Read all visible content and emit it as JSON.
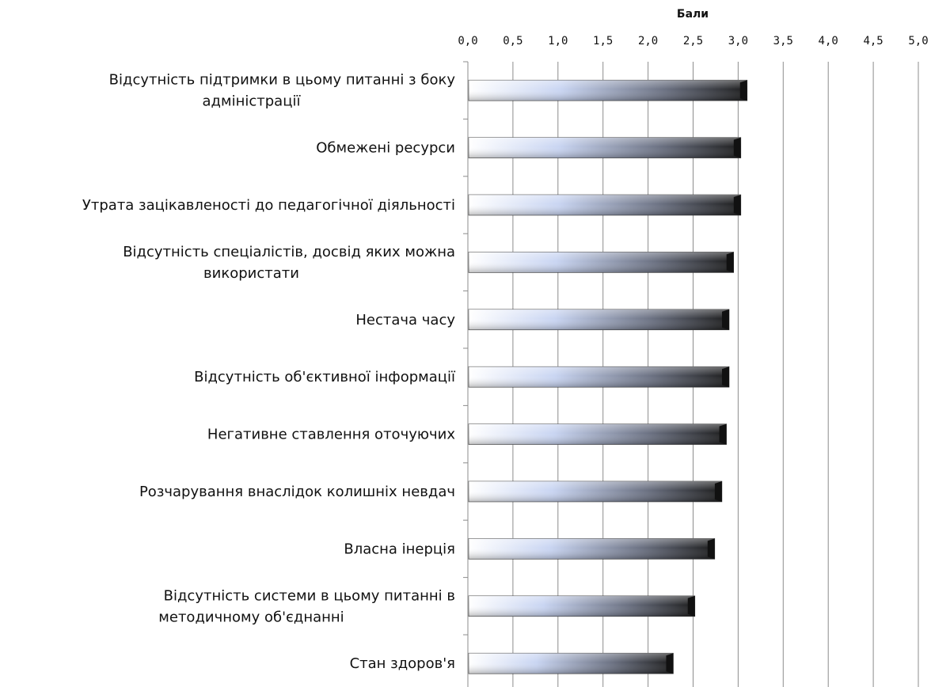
{
  "chart_data": {
    "type": "bar",
    "orientation": "horizontal",
    "xlabel": "Бали",
    "ylabel": "",
    "xlim": [
      0,
      5
    ],
    "ticks": [
      "0,0",
      "0,5",
      "1,0",
      "1,5",
      "2,0",
      "2,5",
      "3,0",
      "3,5",
      "4,0",
      "4,5",
      "5,0"
    ],
    "x_axis_position": "top",
    "grid": true,
    "legend": "none",
    "categories": [
      [
        "Відсутність підтримки в цьому питанні з боку",
        "адміністрації"
      ],
      [
        "Обмежені ресурси"
      ],
      [
        "Утрата зацікавленості до педагогічної діяльності"
      ],
      [
        "Відсутність спеціалістів, досвід яких можна",
        "використати"
      ],
      [
        "Нестача часу"
      ],
      [
        "Відсутність об'єктивної інформації"
      ],
      [
        "Негативне ставлення оточуючих"
      ],
      [
        "Розчарування внаслідок колишніх невдач"
      ],
      [
        "Власна інерція"
      ],
      [
        "Відсутність системи в цьому питанні в",
        "методичному об'єднанні"
      ],
      [
        "Стан здоров'я"
      ]
    ],
    "values": [
      3.1,
      3.03,
      3.03,
      2.95,
      2.9,
      2.9,
      2.87,
      2.82,
      2.74,
      2.52,
      2.28
    ],
    "colors": {
      "bar_start": "#ffffff",
      "bar_mid": "#c9d5f2",
      "bar_end": "#1c1c1c",
      "grid": "#8c8c8c",
      "text": "#111111"
    }
  }
}
